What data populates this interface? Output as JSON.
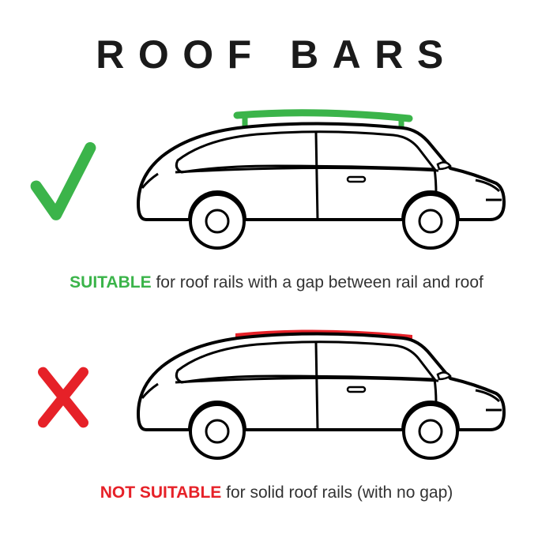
{
  "title": "ROOF BARS",
  "suitable": {
    "caption_strong": "SUITABLE",
    "caption_rest": " for roof rails with a gap between rail and roof",
    "mark_color": "#3bb44a",
    "rail_color": "#3bb44a",
    "rail_gap": true
  },
  "not_suitable": {
    "caption_strong": "NOT SUITABLE",
    "caption_rest": " for solid roof rails (with no gap)",
    "mark_color": "#e62128",
    "rail_color": "#e62128",
    "rail_gap": false
  },
  "car": {
    "body_stroke": "#000000",
    "body_stroke_width": 4,
    "body_fill": "#ffffff"
  }
}
